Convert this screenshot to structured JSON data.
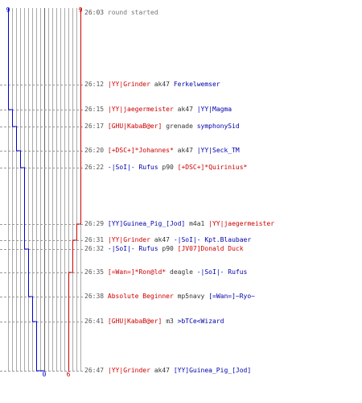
{
  "colors": {
    "team_red": "#cc0000",
    "team_blue": "#0000cc",
    "grid": "#aaaaaa",
    "time": "#555555",
    "weapon": "#333333"
  },
  "axis": {
    "blue_start": "9",
    "red_start": "9",
    "blue_end": "0",
    "red_end": "6"
  },
  "events": [
    {
      "time": "26:03",
      "text": "round started",
      "type": "start"
    },
    {
      "time": "26:12",
      "killer": "|YY|Grinder",
      "killer_team": "red",
      "weapon": "ak47",
      "victim": "Ferkelwemser",
      "victim_team": "blue"
    },
    {
      "time": "26:15",
      "killer": "|YY|jaegermeister",
      "killer_team": "red",
      "weapon": "ak47",
      "victim": "|YY|Magma",
      "victim_team": "blue"
    },
    {
      "time": "26:17",
      "killer": "[GHU|KabaB@er]",
      "killer_team": "red",
      "weapon": "grenade",
      "victim": "symphonySid",
      "victim_team": "blue"
    },
    {
      "time": "26:20",
      "killer": "[+DSC+]*Johannes*",
      "killer_team": "red",
      "weapon": "ak47",
      "victim": "|YY|Seck_TM",
      "victim_team": "blue"
    },
    {
      "time": "26:22",
      "killer": "-|SoI|- Rufus",
      "killer_team": "blue",
      "weapon": "p90",
      "victim": "[+DSC+]*Quirinius*",
      "victim_team": "red"
    },
    {
      "time": "26:29",
      "killer": "[YY]Guinea_Pig_[Jod]",
      "killer_team": "blue",
      "weapon": "m4a1",
      "victim": "|YY|jaegermeister",
      "victim_team": "red"
    },
    {
      "time": "26:31",
      "killer": "|YY|Grinder",
      "killer_team": "red",
      "weapon": "ak47",
      "victim": "-|SoI|- Kpt.Blaubaer",
      "victim_team": "blue"
    },
    {
      "time": "26:32",
      "killer": "-|SoI|- Rufus",
      "killer_team": "blue",
      "weapon": "p90",
      "victim": "[JV07]Donald Duck",
      "victim_team": "red"
    },
    {
      "time": "26:35",
      "killer": "[=Wan=]*Ron@ld*",
      "killer_team": "red",
      "weapon": "deagle",
      "victim": "-|SoI|- Rufus",
      "victim_team": "blue"
    },
    {
      "time": "26:38",
      "killer": "Absolute Beginner",
      "killer_team": "red",
      "weapon": "mp5navy",
      "victim": "[=Wan=]~Ryo~",
      "victim_team": "blue"
    },
    {
      "time": "26:41",
      "killer": "[GHU|KabaB@er]",
      "killer_team": "red",
      "weapon": "m3",
      "victim": ">bTCe<Wizard",
      "victim_team": "blue"
    },
    {
      "time": "26:47",
      "killer": "|YY|Grinder",
      "killer_team": "red",
      "weapon": "ak47",
      "victim": "[YY]Guinea_Pig_[Jod]",
      "victim_team": "blue"
    }
  ],
  "counts": {
    "blue": [
      9,
      9,
      8,
      7,
      6,
      5,
      5,
      5,
      4,
      4,
      3,
      2,
      1,
      0
    ],
    "red": [
      9,
      9,
      9,
      9,
      9,
      9,
      8,
      7,
      7,
      6,
      6,
      6,
      6,
      6
    ]
  }
}
